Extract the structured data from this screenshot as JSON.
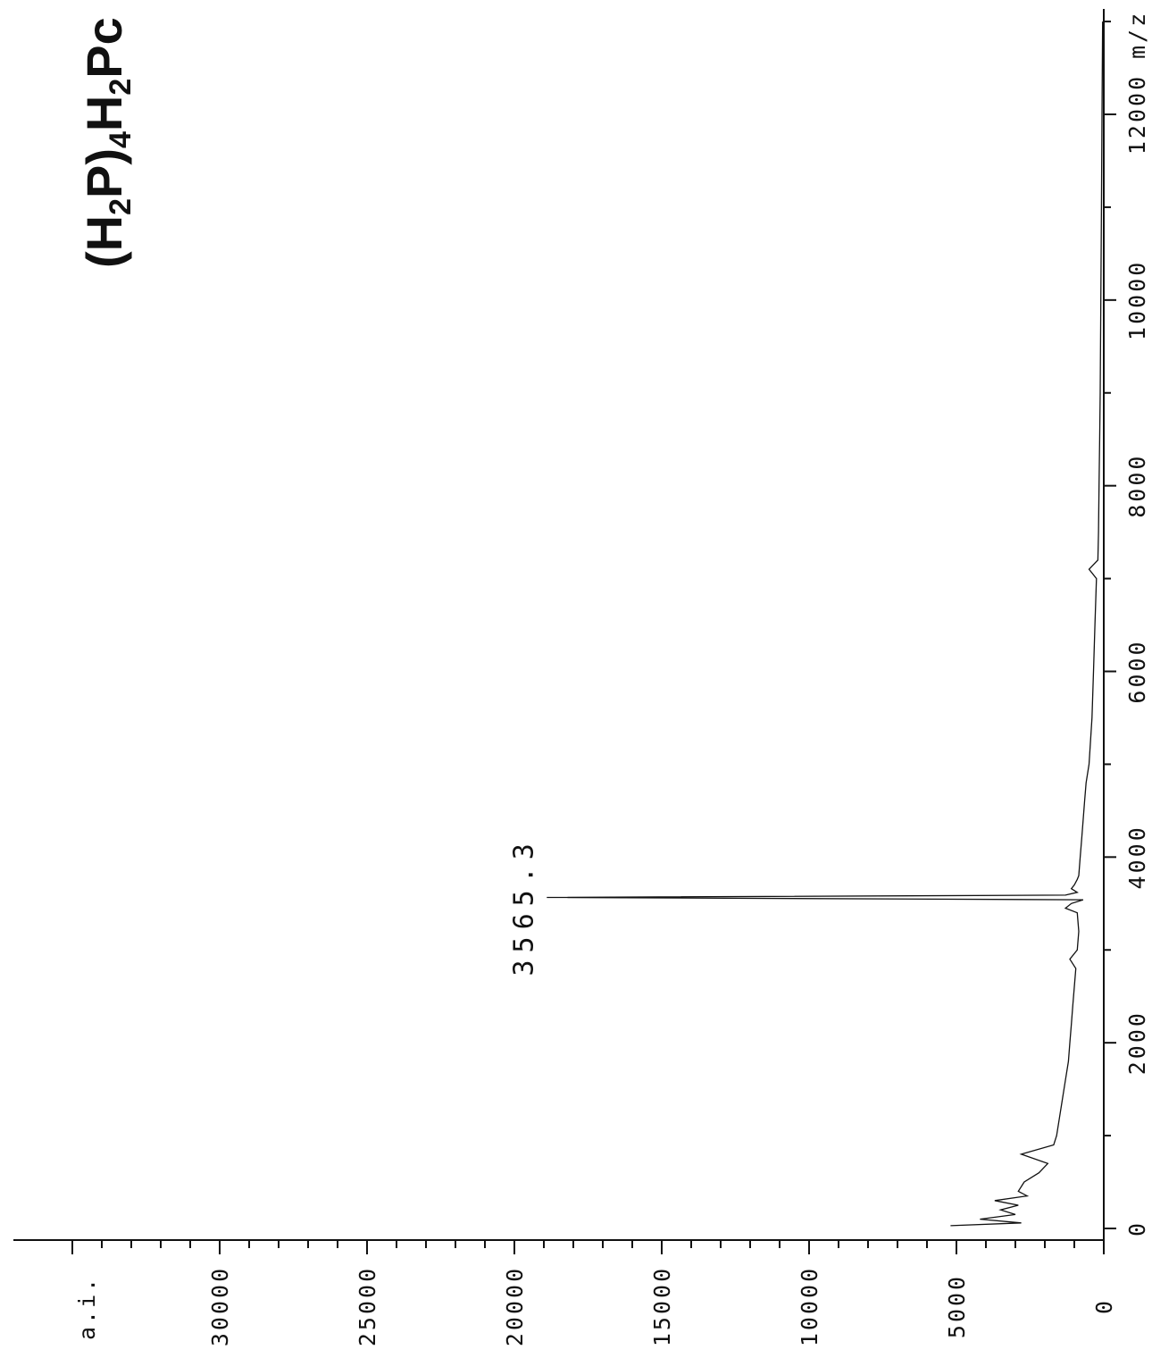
{
  "chart_data": {
    "type": "line",
    "title_parts": [
      "(H",
      "2",
      "P)",
      "4",
      "H",
      "2",
      "Pc"
    ],
    "xlabel": "m/z",
    "ylabel": "a.i.",
    "xlim": [
      0,
      13000
    ],
    "ylim": [
      0,
      35000
    ],
    "x_ticks_major": [
      0,
      2000,
      4000,
      6000,
      8000,
      10000,
      12000
    ],
    "x_tick_labels": [
      "0",
      "2000",
      "4000",
      "6000",
      "8000",
      "10000",
      "12000"
    ],
    "y_ticks_major": [
      0,
      5000,
      10000,
      15000,
      20000,
      25000,
      30000
    ],
    "y_tick_labels": [
      "0",
      "5000",
      "10000",
      "15000",
      "20000",
      "25000",
      "30000"
    ],
    "peaks": [
      {
        "x": 3565.3,
        "y": 18900,
        "label": "3565.3"
      }
    ],
    "series": [
      {
        "x": [
          30,
          60,
          100,
          150,
          200,
          250,
          300,
          350,
          400,
          500,
          600,
          700,
          800,
          900,
          1000,
          1200,
          1400,
          1600,
          1800,
          2000,
          2200,
          2400,
          2600,
          2800,
          2900,
          3000,
          3200,
          3400,
          3450,
          3500,
          3540,
          3565.3,
          3590,
          3620,
          3660,
          3700,
          3760,
          3800,
          4000,
          4200,
          4400,
          4600,
          4800,
          5000,
          5500,
          6000,
          6500,
          7000,
          7100,
          7200,
          7500,
          8000,
          8500,
          9000,
          10000,
          11000,
          12000,
          13000
        ],
        "y": [
          5200,
          2800,
          4200,
          3000,
          3500,
          2900,
          3700,
          2600,
          2900,
          2700,
          2200,
          1900,
          2800,
          1700,
          1600,
          1500,
          1400,
          1300,
          1200,
          1150,
          1100,
          1050,
          1000,
          950,
          1150,
          900,
          850,
          900,
          1300,
          1100,
          700,
          18900,
          1300,
          900,
          1100,
          1000,
          900,
          850,
          800,
          750,
          700,
          650,
          600,
          500,
          400,
          350,
          300,
          250,
          500,
          200,
          180,
          160,
          140,
          120,
          100,
          80,
          60,
          40
        ]
      }
    ]
  }
}
